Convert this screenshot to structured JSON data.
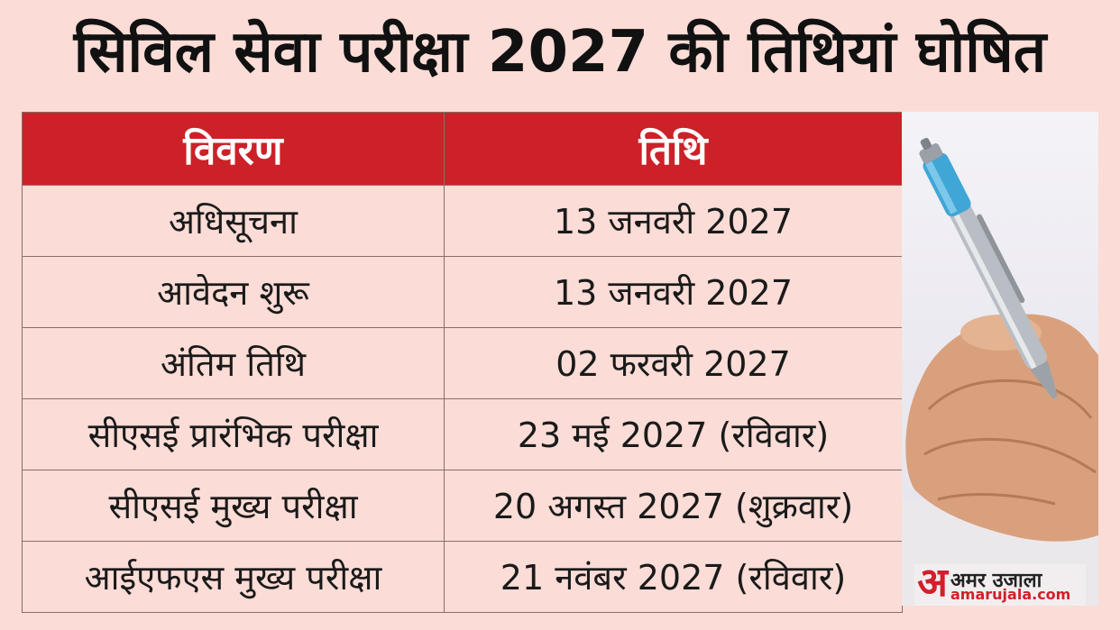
{
  "title": "सिविल सेवा परीक्षा 2027 की तिथियां घोषित",
  "table": {
    "headers": [
      "विवरण",
      "तिथि"
    ],
    "rows": [
      [
        "अधिसूचना",
        "13 जनवरी 2027"
      ],
      [
        "आवेदन शुरू",
        "13 जनवरी 2027"
      ],
      [
        "अंतिम तिथि",
        "02 फरवरी 2027"
      ],
      [
        "सीएसई प्रारंभिक परीक्षा",
        "23 मई 2027 (रविवार)"
      ],
      [
        "सीएसई मुख्य परीक्षा",
        "20 अगस्त 2027 (शुक्रवार)"
      ],
      [
        "आईएफएस मुख्य परीक्षा",
        "21 नवंबर 2027 (रविवार)"
      ]
    ]
  },
  "logo": {
    "mark": "अ",
    "name": "अमर उजाला",
    "url": "amarujala.com"
  },
  "colors": {
    "background": "#fbdcd6",
    "header": "#cc2128",
    "brand": "#d1202a"
  }
}
